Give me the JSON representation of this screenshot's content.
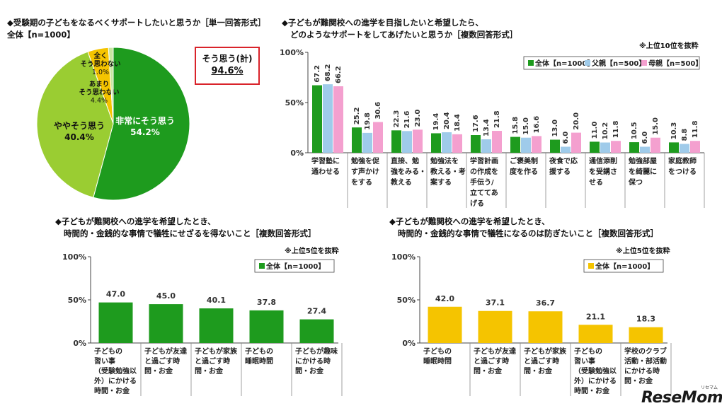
{
  "pie_title": "◆受験期の子どもをなるべくサポートしたいと思うか［単一回答形式］",
  "pie_subtitle": "全体【n=1000】",
  "callout": {
    "label": "そう思う(計)",
    "value": "94.6%"
  },
  "chart1_title_1": "◆子どもが難関校への進学を目指したいと希望したら、",
  "chart1_title_2": "どのようなサポートをしてあげたいと思うか［複数回答形式］",
  "chart1_note": "※上位10位を抜粋",
  "chart2_title_1": "◆子どもが難関校への進学を希望したとき、",
  "chart2_title_2": "時間的・金銭的な事情で犠牲にせざるを得ないこと［複数回答形式］",
  "chart2_note": "※上位5位を抜粋",
  "chart3_title_1": "◆子どもが難関校への進学を希望したとき、",
  "chart3_title_2": "時間的・金銭的な事情で犠牲になるのは防ぎたいこと［複数回答形式］",
  "chart3_note": "※上位5位を抜粋",
  "logo": "ReseMom",
  "logo_small": "リセマム",
  "colors": {
    "dark_green": "#1e9b1e",
    "yellow_green": "#9acd32",
    "yellow": "#f5c400",
    "light_blue": "#9fcbea",
    "pink": "#f4a0cf",
    "red": "#d9232a"
  },
  "chart_data": [
    {
      "type": "pie",
      "slices": [
        {
          "label": "非常にそう思う",
          "value": 54.2,
          "display": "54.2%",
          "color": "#1e9b1e"
        },
        {
          "label": "ややそう思う",
          "value": 40.4,
          "display": "40.4%",
          "color": "#9acd32"
        },
        {
          "label": "あまり\nそう思わない",
          "value": 4.4,
          "display": "4.4%",
          "color": "#f5c400"
        },
        {
          "label": "全く\nそう思わない",
          "value": 1.0,
          "display": "1.0%",
          "color": "#c8e6a0"
        }
      ]
    },
    {
      "type": "bar",
      "series": [
        {
          "name": "全体【n=1000】",
          "color": "#1e9b1e",
          "values": [
            67.2,
            25.2,
            22.3,
            19.4,
            17.6,
            15.8,
            13.0,
            11.0,
            10.5,
            10.3
          ]
        },
        {
          "name": "父親【n=500】",
          "color": "#9fcbea",
          "values": [
            68.2,
            19.8,
            21.6,
            20.4,
            13.4,
            15.0,
            6.0,
            10.2,
            6.0,
            8.8
          ]
        },
        {
          "name": "母親【n=500】",
          "color": "#f4a0cf",
          "values": [
            66.2,
            30.6,
            23.0,
            18.4,
            21.8,
            16.6,
            20.0,
            11.8,
            15.0,
            11.8
          ]
        }
      ],
      "categories": [
        "学習塾に\n通わせる",
        "勉強を促\nす声かけ\nをする",
        "直接、勉\n強をみる・\n教える",
        "勉強法を\n教える・考\n案する",
        "学習計画\nの作成を\n手伝う/\n立ててあ\nげる",
        "ご褒美制\n度を作る",
        "夜食で応\n援する",
        "通信添削\nを受講さ\nせる",
        "勉強部屋\nを綺麗に\n保つ",
        "家庭教師\nをつける"
      ],
      "yticks": [
        "0%",
        "50%",
        "100%"
      ],
      "ylim": [
        0,
        100
      ]
    },
    {
      "type": "bar",
      "series": [
        {
          "name": "全体【n=1000】",
          "color": "#1e9b1e",
          "values": [
            47.0,
            45.0,
            40.1,
            37.8,
            27.4
          ]
        }
      ],
      "categories": [
        "子どもの\n習い事\n（受験勉強以\n外）にかける\n時間・お金",
        "子どもが友達\nと過ごす時\n間・お金",
        "子どもが家族\nと過ごす時\n間・お金",
        "子どもの\n睡眠時間",
        "子どもが趣味\nにかける時\n間・お金"
      ],
      "yticks": [
        "0%",
        "50%",
        "100%"
      ],
      "ylim": [
        0,
        100
      ]
    },
    {
      "type": "bar",
      "series": [
        {
          "name": "全体【n=1000】",
          "color": "#f5c400",
          "values": [
            42.0,
            37.1,
            36.7,
            21.1,
            18.3
          ]
        }
      ],
      "categories": [
        "子どもの\n睡眠時間",
        "子どもが友達\nと過ごす時\n間・お金",
        "子どもが家族\nと過ごす時\n間・お金",
        "子どもの\n習い事\n（受験勉強以\n外）にかける\n時間・お金",
        "学校のクラブ\n活動・部活動\nにかける時\n間・お金"
      ],
      "yticks": [
        "0%",
        "50%",
        "100%"
      ],
      "ylim": [
        0,
        100
      ]
    }
  ]
}
